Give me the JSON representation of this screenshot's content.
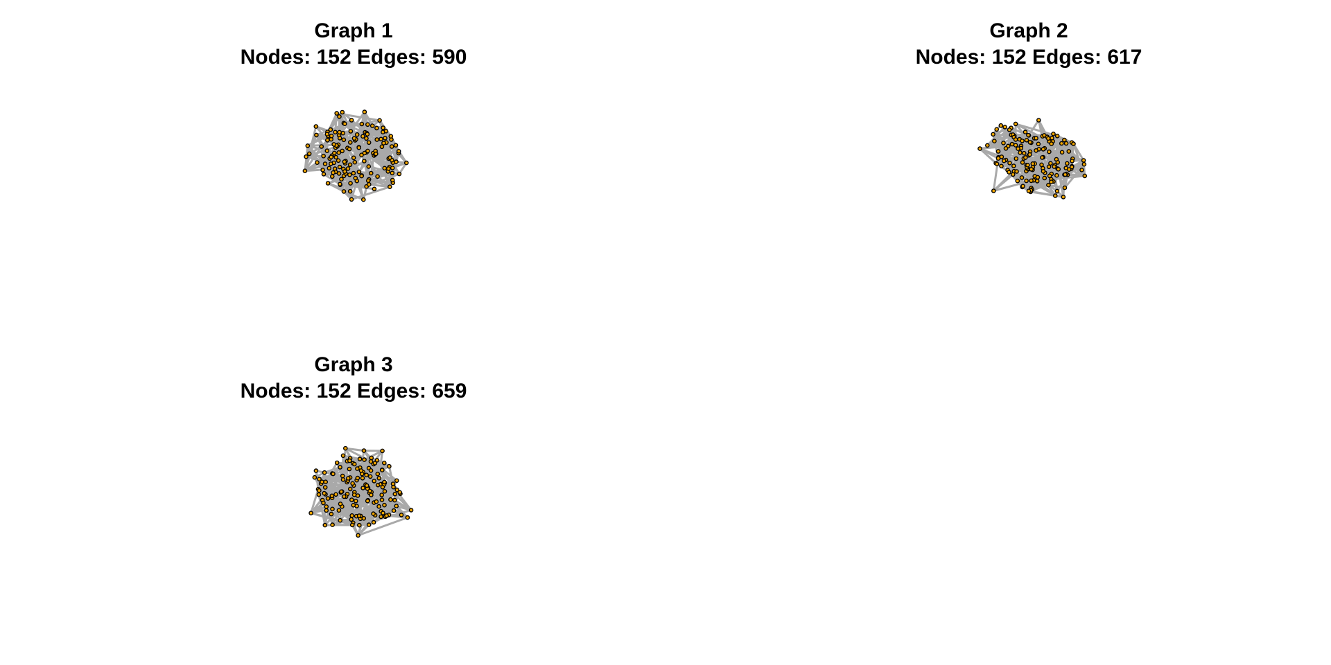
{
  "style": {
    "edge_color": "#a9a9a9",
    "node_fill": "#f0a500",
    "node_stroke": "#000000"
  },
  "graphs": [
    {
      "title": "Graph 1",
      "subtitle": "Nodes: 152 Edges: 590",
      "nodes": 152,
      "edges": 590
    },
    {
      "title": "Graph 2",
      "subtitle": "Nodes: 152 Edges: 617",
      "nodes": 152,
      "edges": 617
    },
    {
      "title": "Graph 3",
      "subtitle": "Nodes: 152 Edges: 659",
      "nodes": 152,
      "edges": 659
    }
  ]
}
